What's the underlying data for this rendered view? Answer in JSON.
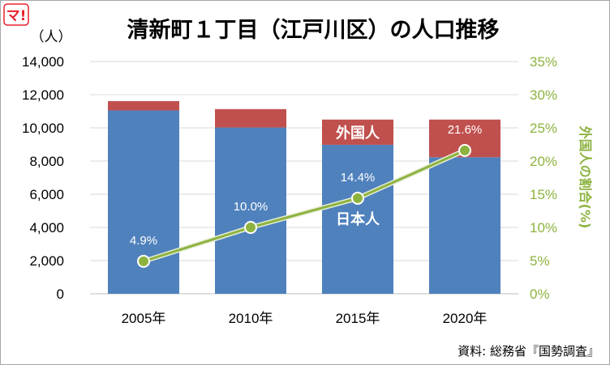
{
  "logo": "マ!",
  "source": "資料: 総務省『国勢調査』",
  "chart_data": {
    "type": "bar",
    "title": "清新町１丁目（江戸川区）の人口推移",
    "ylabel": "（人）",
    "ylabel_right": "外国人の割合(%)",
    "categories": [
      "2005年",
      "2010年",
      "2015年",
      "2020年"
    ],
    "ylim": [
      0,
      14000
    ],
    "yticks": [
      0,
      2000,
      4000,
      6000,
      8000,
      10000,
      12000,
      14000
    ],
    "ytick_labels": [
      "0",
      "2,000",
      "4,000",
      "6,000",
      "8,000",
      "10,000",
      "12,000",
      "14,000"
    ],
    "ylim_right": [
      0,
      35
    ],
    "yticks_right": [
      0,
      5,
      10,
      15,
      20,
      25,
      30,
      35
    ],
    "ytick_labels_right": [
      "0%",
      "5%",
      "10%",
      "15%",
      "20%",
      "25%",
      "30%",
      "35%"
    ],
    "grid": true,
    "series": [
      {
        "name": "日本人",
        "type": "bar",
        "color": "#4f81bd",
        "values": [
          11050,
          10020,
          8980,
          8230
        ]
      },
      {
        "name": "外国人",
        "type": "bar",
        "color": "#c0504d",
        "values": [
          560,
          1110,
          1520,
          2270
        ]
      },
      {
        "name": "",
        "type": "line",
        "axis": "right",
        "color": "#8db33f",
        "values": [
          4.9,
          10.0,
          14.4,
          21.6
        ],
        "labels": [
          "4.9%",
          "10.0%",
          "14.4%",
          "21.6%"
        ]
      }
    ]
  }
}
